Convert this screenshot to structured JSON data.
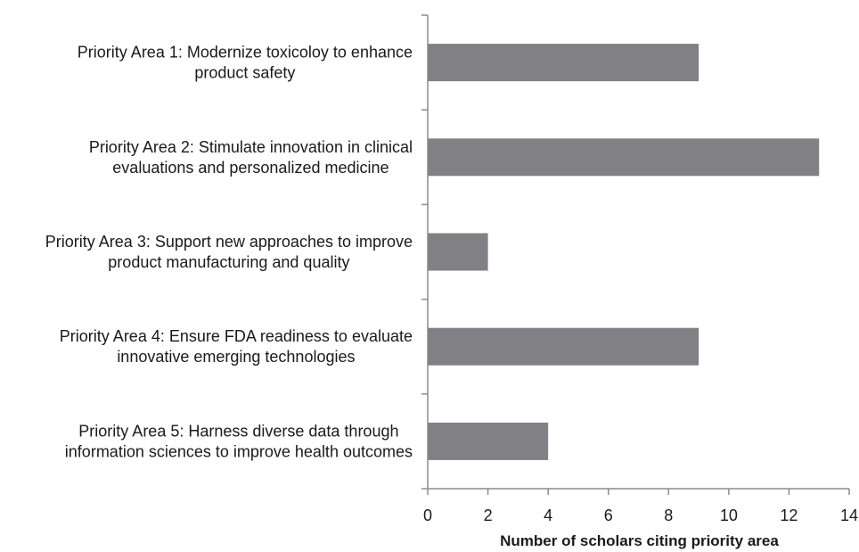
{
  "chart_data": {
    "type": "bar",
    "orientation": "horizontal",
    "categories": [
      [
        "Priority Area 1: Modernize toxicoloy to enhance",
        "product safety"
      ],
      [
        "Priority Area 2: Stimulate innovation in clinical",
        "evaluations and personalized medicine"
      ],
      [
        "Priority Area 3: Support new approaches to improve",
        "product manufacturing and quality"
      ],
      [
        "Priority Area 4: Ensure FDA readiness to evaluate",
        "innovative emerging technologies"
      ],
      [
        "Priority Area 5: Harness diverse data through",
        "information sciences to improve health outcomes"
      ]
    ],
    "values": [
      9,
      13,
      2,
      9,
      4
    ],
    "xlabel": "Number of scholars citing priority area",
    "xlim": [
      0,
      14
    ],
    "xticks": [
      0,
      2,
      4,
      6,
      8,
      10,
      12,
      14
    ],
    "grid": false,
    "legend": "none",
    "bar_color": "#808085",
    "axis_color": "#8c8c8c"
  }
}
